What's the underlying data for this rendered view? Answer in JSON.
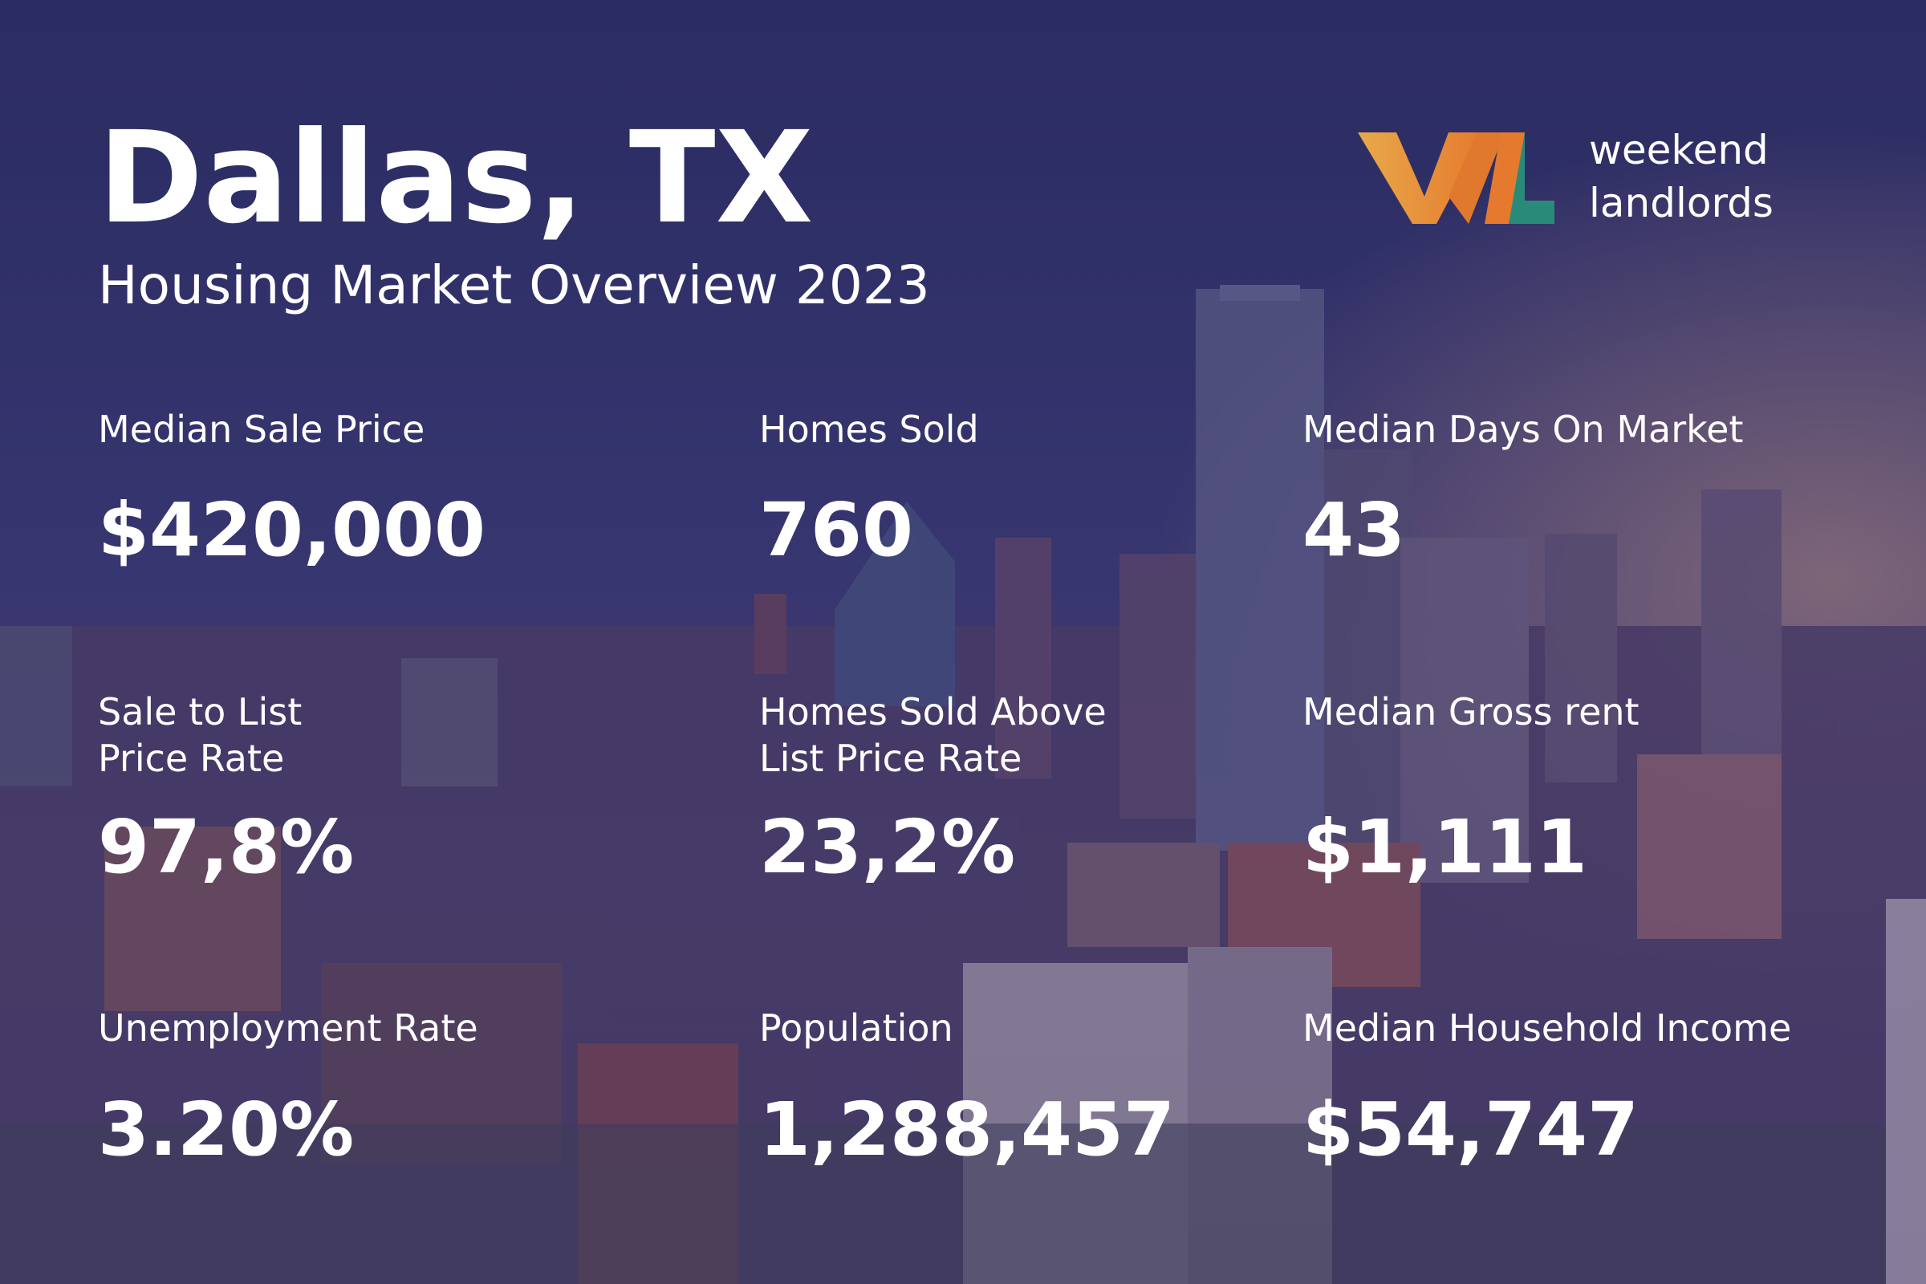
{
  "header": {
    "title": "Dallas, TX",
    "subtitle": "Housing Market Overview 2023"
  },
  "logo": {
    "line1": "weekend",
    "line2": "landlords"
  },
  "stats": [
    {
      "label": [
        "Median Sale Price"
      ],
      "value": "$420,000"
    },
    {
      "label": [
        "Homes Sold"
      ],
      "value": "760"
    },
    {
      "label": [
        "Median Days On Market"
      ],
      "value": "43"
    },
    {
      "label": [
        "Sale to List",
        "Price Rate"
      ],
      "value": "97,8%"
    },
    {
      "label": [
        "Homes Sold Above",
        "List Price Rate"
      ],
      "value": "23,2%"
    },
    {
      "label": [
        "Median Gross rent"
      ],
      "value": "$1,111"
    },
    {
      "label": [
        "Unemployment Rate"
      ],
      "value": "3.20%"
    },
    {
      "label": [
        "Population"
      ],
      "value": "1,288,457"
    },
    {
      "label": [
        "Median Household Income"
      ],
      "value": "$54,747"
    }
  ]
}
